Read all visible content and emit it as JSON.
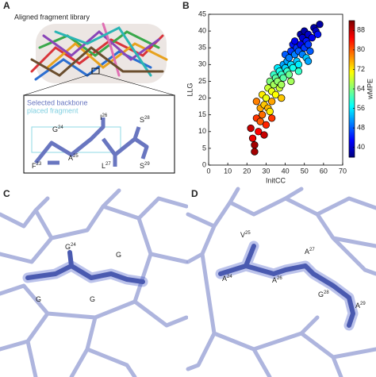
{
  "panels": {
    "A": {
      "label": "A",
      "title": "Aligned fragment library",
      "legend": [
        "Selected backbone",
        "placed fragment"
      ],
      "residues": [
        {
          "name": "G",
          "number": "24"
        },
        {
          "name": "I",
          "number": "26"
        },
        {
          "name": "S",
          "number": "28"
        },
        {
          "name": "A",
          "number": "25"
        },
        {
          "name": "F",
          "number": "23"
        },
        {
          "name": "L",
          "number": "27"
        },
        {
          "name": "S",
          "number": "29"
        }
      ]
    },
    "B": {
      "label": "B"
    },
    "C": {
      "label": "C",
      "residues": [
        {
          "name": "G",
          "number": "24"
        },
        {
          "name": "G"
        },
        {
          "name": "G"
        },
        {
          "name": "G"
        }
      ]
    },
    "D": {
      "label": "D",
      "residues": [
        {
          "name": "V",
          "number": "25"
        },
        {
          "name": "A",
          "number": "27"
        },
        {
          "name": "A",
          "number": "24"
        },
        {
          "name": "A",
          "number": "26"
        },
        {
          "name": "G",
          "number": "28"
        },
        {
          "name": "A",
          "number": "29"
        }
      ]
    }
  },
  "chart_data": {
    "type": "scatter",
    "xlabel": "InitCC",
    "ylabel": "LLG",
    "colorbar_label": "wMPE",
    "xlim": [
      0,
      70
    ],
    "xticks": [
      0,
      10,
      20,
      30,
      40,
      50,
      60,
      70
    ],
    "ylim": [
      0,
      45
    ],
    "yticks": [
      0,
      5,
      10,
      15,
      20,
      25,
      30,
      35,
      40,
      45
    ],
    "clim": [
      36,
      92
    ],
    "cticks": [
      40,
      48,
      56,
      64,
      72,
      80,
      88
    ],
    "colormap": [
      "#00007f",
      "#0000ff",
      "#007fff",
      "#00ffff",
      "#7fff7f",
      "#ffff00",
      "#ff7f00",
      "#ff0000",
      "#7f0000"
    ],
    "x": [
      22,
      23,
      24,
      25,
      25,
      26,
      27,
      27,
      28,
      28,
      29,
      30,
      30,
      31,
      31,
      32,
      32,
      33,
      33,
      34,
      34,
      35,
      35,
      36,
      36,
      37,
      37,
      38,
      38,
      39,
      39,
      40,
      40,
      41,
      41,
      42,
      42,
      43,
      43,
      44,
      44,
      45,
      45,
      46,
      46,
      47,
      47,
      48,
      48,
      49,
      49,
      50,
      50,
      51,
      51,
      52,
      52,
      53,
      54,
      55,
      56,
      57,
      58,
      24,
      29,
      33,
      38,
      43,
      47,
      52
    ],
    "y": [
      11,
      8,
      6,
      14,
      19,
      10,
      13,
      17,
      21,
      15,
      18,
      20,
      12,
      23,
      17,
      16,
      25,
      22,
      19,
      24,
      27,
      21,
      26,
      25,
      29,
      23,
      28,
      27,
      24,
      30,
      26,
      29,
      33,
      28,
      31,
      32,
      27,
      34,
      30,
      29,
      36,
      33,
      37,
      31,
      35,
      34,
      30,
      36,
      39,
      33,
      38,
      35,
      40,
      37,
      32,
      39,
      36,
      34,
      38,
      41,
      40,
      39,
      42,
      4,
      9,
      14,
      20,
      25,
      28,
      31
    ],
    "c": [
      88,
      86,
      90,
      82,
      78,
      85,
      80,
      76,
      72,
      79,
      74,
      70,
      83,
      68,
      75,
      72,
      64,
      70,
      76,
      66,
      60,
      71,
      62,
      65,
      56,
      68,
      58,
      60,
      66,
      52,
      62,
      55,
      48,
      60,
      52,
      50,
      63,
      46,
      55,
      58,
      44,
      50,
      42,
      54,
      46,
      48,
      56,
      42,
      38,
      50,
      40,
      46,
      38,
      44,
      54,
      40,
      46,
      48,
      42,
      38,
      40,
      44,
      38,
      90,
      88,
      82,
      74,
      66,
      60,
      52
    ]
  }
}
